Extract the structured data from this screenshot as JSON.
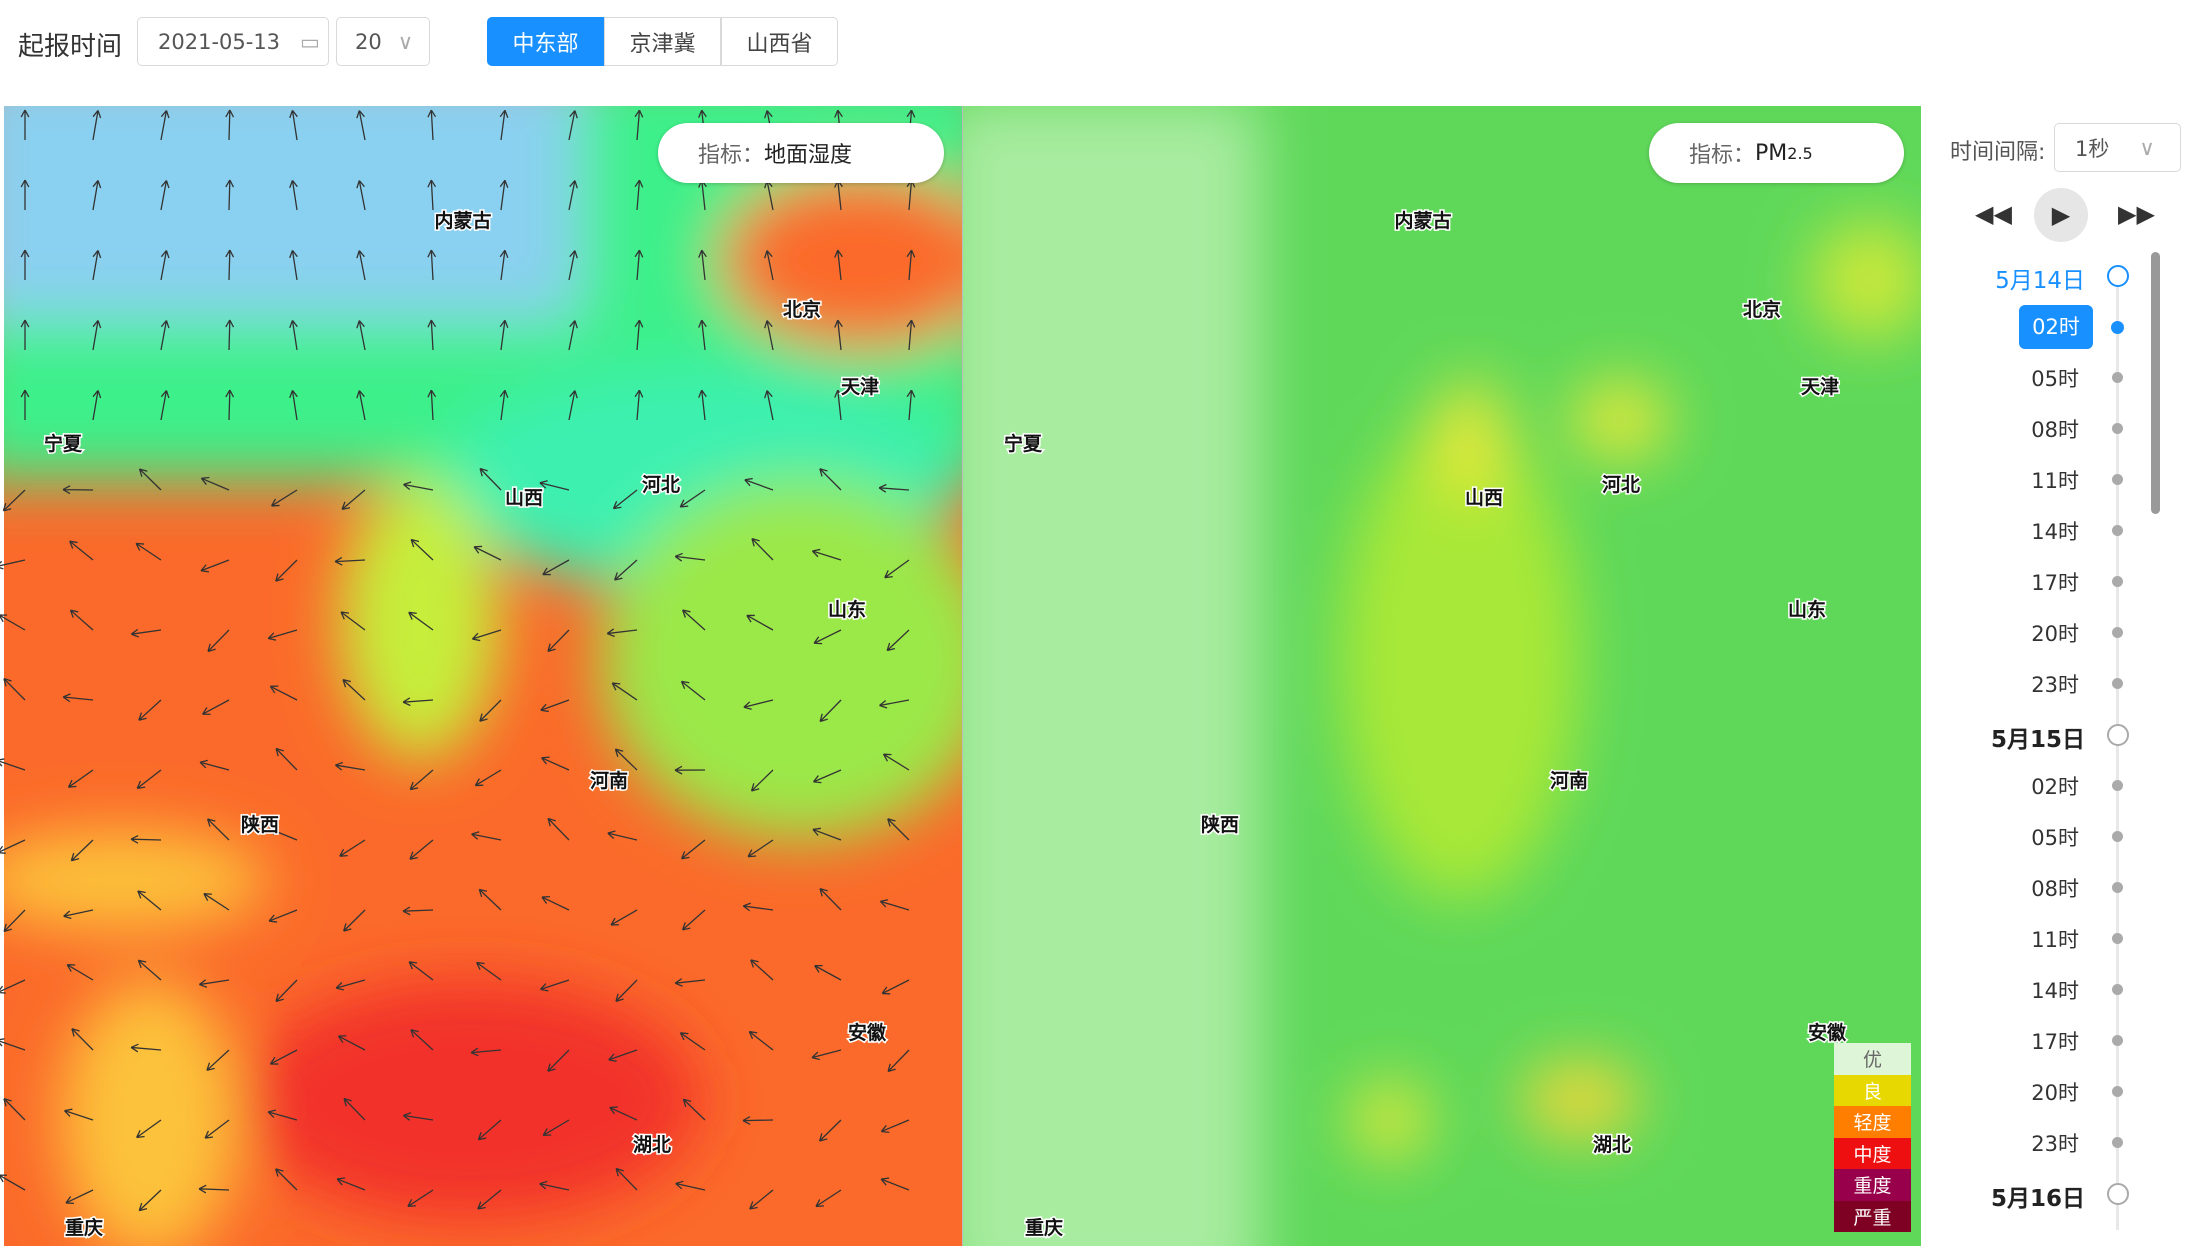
{
  "header": {
    "label": "起报时间",
    "date": "2021-05-13",
    "hour": "20",
    "tabs": [
      "中东部",
      "京津冀",
      "山西省"
    ],
    "active_tab": 0
  },
  "maps": [
    {
      "indicator_label": "指标：",
      "indicator": "地面湿度"
    },
    {
      "indicator_label": "指标：",
      "indicator": "PM",
      "indicator_sub": "2.5"
    }
  ],
  "regions": [
    "内蒙古",
    "北京",
    "天津",
    "宁夏",
    "山西",
    "河北",
    "山东",
    "河南",
    "陕西",
    "安徽",
    "湖北",
    "重庆"
  ],
  "legend": [
    "优",
    "良",
    "轻度",
    "中度",
    "重度",
    "严重"
  ],
  "player": {
    "interval_label": "时间间隔:",
    "interval": "1秒"
  },
  "timeline": [
    {
      "day": "5月14日",
      "hours": [
        "02时",
        "05时",
        "08时",
        "11时",
        "14时",
        "17时",
        "20时",
        "23时"
      ]
    },
    {
      "day": "5月15日",
      "hours": [
        "02时",
        "05时",
        "08时",
        "11时",
        "14时",
        "17时",
        "20时",
        "23时"
      ]
    },
    {
      "day": "5月16日",
      "hours": []
    }
  ]
}
